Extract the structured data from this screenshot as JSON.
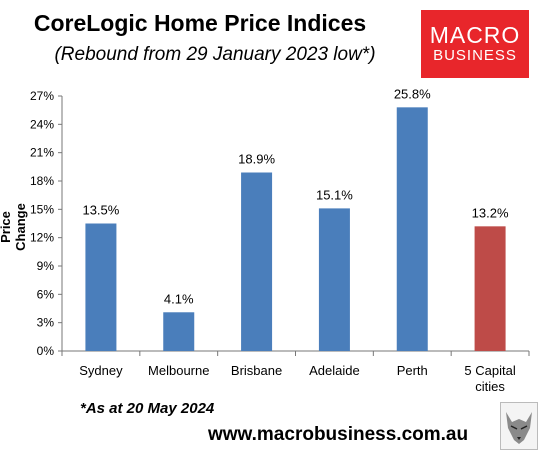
{
  "chart_data": {
    "type": "bar",
    "title": "CoreLogic Home Price Indices",
    "subtitle": "(Rebound from 29 January 2023 low*)",
    "ylabel": "Price Change",
    "categories": [
      "Sydney",
      "Melbourne",
      "Brisbane",
      "Adelaide",
      "Perth",
      "5 Capital cities"
    ],
    "category_lines": [
      [
        "Sydney"
      ],
      [
        "Melbourne"
      ],
      [
        "Brisbane"
      ],
      [
        "Adelaide"
      ],
      [
        "Perth"
      ],
      [
        "5 Capital",
        "cities"
      ]
    ],
    "values": [
      13.5,
      4.1,
      18.9,
      15.1,
      25.8,
      13.2
    ],
    "data_labels": [
      "13.5%",
      "4.1%",
      "18.9%",
      "15.1%",
      "25.8%",
      "13.2%"
    ],
    "ylim": [
      0,
      27
    ],
    "yticks": [
      0,
      3,
      6,
      9,
      12,
      15,
      18,
      21,
      24,
      27
    ],
    "ytick_labels": [
      "0%",
      "3%",
      "6%",
      "9%",
      "12%",
      "15%",
      "18%",
      "21%",
      "24%",
      "27%"
    ],
    "colors": [
      "#4a7ebb",
      "#4a7ebb",
      "#4a7ebb",
      "#4a7ebb",
      "#4a7ebb",
      "#be4b48"
    ],
    "grid": false,
    "legend": "none"
  },
  "footnote": "*As at 20 May 2024",
  "website": "www.macrobusiness.com.au",
  "logo": {
    "line1": "MACRO",
    "line2": "BUSINESS",
    "color": "#e8262b"
  }
}
